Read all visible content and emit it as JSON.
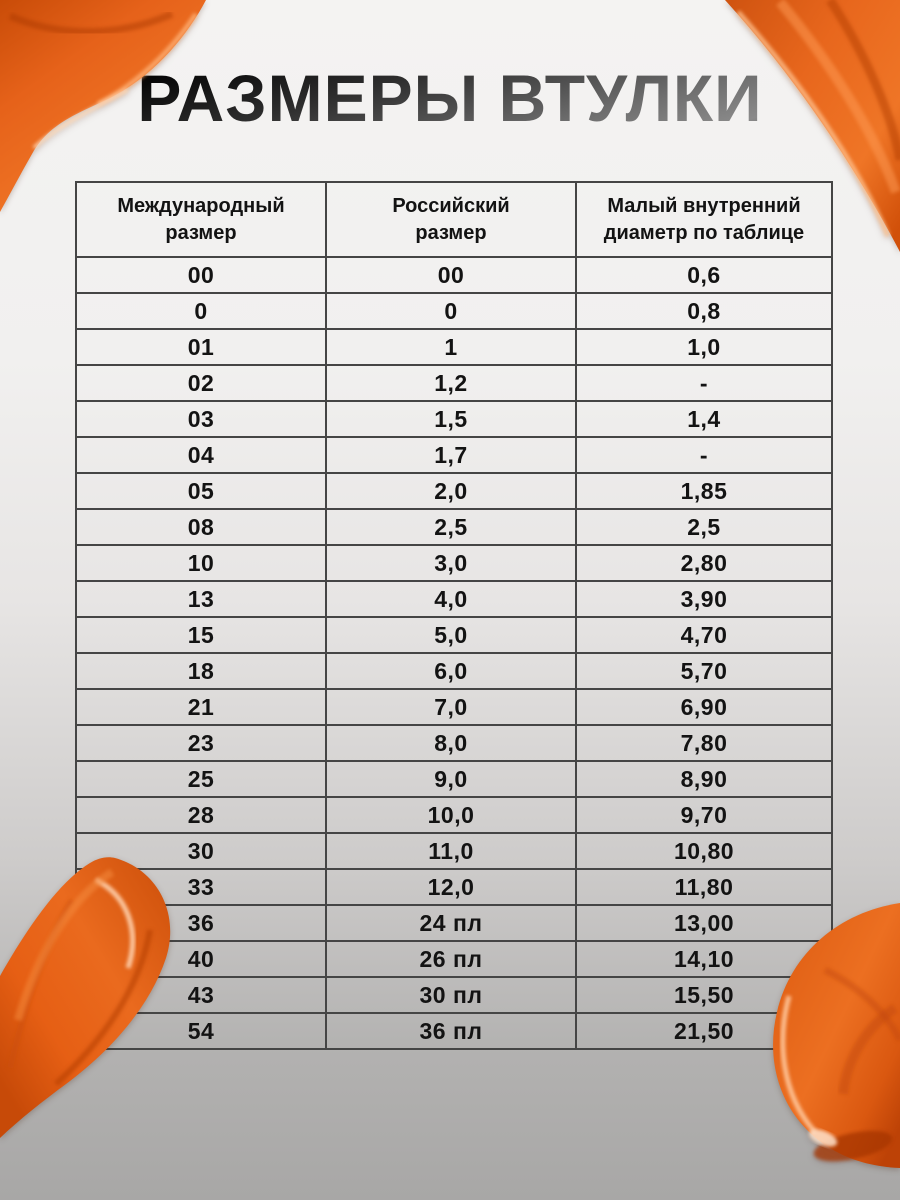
{
  "page": {
    "title": "РАЗМЕРЫ ВТУЛКИ"
  },
  "colors": {
    "accent_orange": "#e8641a",
    "orange_dark": "#b23c04",
    "orange_highlight": "#ffd2ae",
    "background_top": "#f4f3f2",
    "background_bottom": "#a8a7a6",
    "table_border": "#454545",
    "text": "#131313"
  },
  "decorations": {
    "paint_smears": [
      "paint-smear-top-left",
      "paint-smear-top-right",
      "paint-smear-bottom-left",
      "paint-smear-bottom-right"
    ]
  },
  "table": {
    "columns": [
      "Международный размер",
      "Российский размер",
      "Малый внутренний диаметр по таблице"
    ],
    "rows": [
      [
        "00",
        "00",
        "0,6"
      ],
      [
        "0",
        "0",
        "0,8"
      ],
      [
        "01",
        "1",
        "1,0"
      ],
      [
        "02",
        "1,2",
        "-"
      ],
      [
        "03",
        "1,5",
        "1,4"
      ],
      [
        "04",
        "1,7",
        "-"
      ],
      [
        "05",
        "2,0",
        "1,85"
      ],
      [
        "08",
        "2,5",
        "2,5"
      ],
      [
        "10",
        "3,0",
        "2,80"
      ],
      [
        "13",
        "4,0",
        "3,90"
      ],
      [
        "15",
        "5,0",
        "4,70"
      ],
      [
        "18",
        "6,0",
        "5,70"
      ],
      [
        "21",
        "7,0",
        "6,90"
      ],
      [
        "23",
        "8,0",
        "7,80"
      ],
      [
        "25",
        "9,0",
        "8,90"
      ],
      [
        "28",
        "10,0",
        "9,70"
      ],
      [
        "30",
        "11,0",
        "10,80"
      ],
      [
        "33",
        "12,0",
        "11,80"
      ],
      [
        "36",
        "24 пл",
        "13,00"
      ],
      [
        "40",
        "26 пл",
        "14,10"
      ],
      [
        "43",
        "30 пл",
        "15,50"
      ],
      [
        "54",
        "36 пл",
        "21,50"
      ]
    ]
  }
}
